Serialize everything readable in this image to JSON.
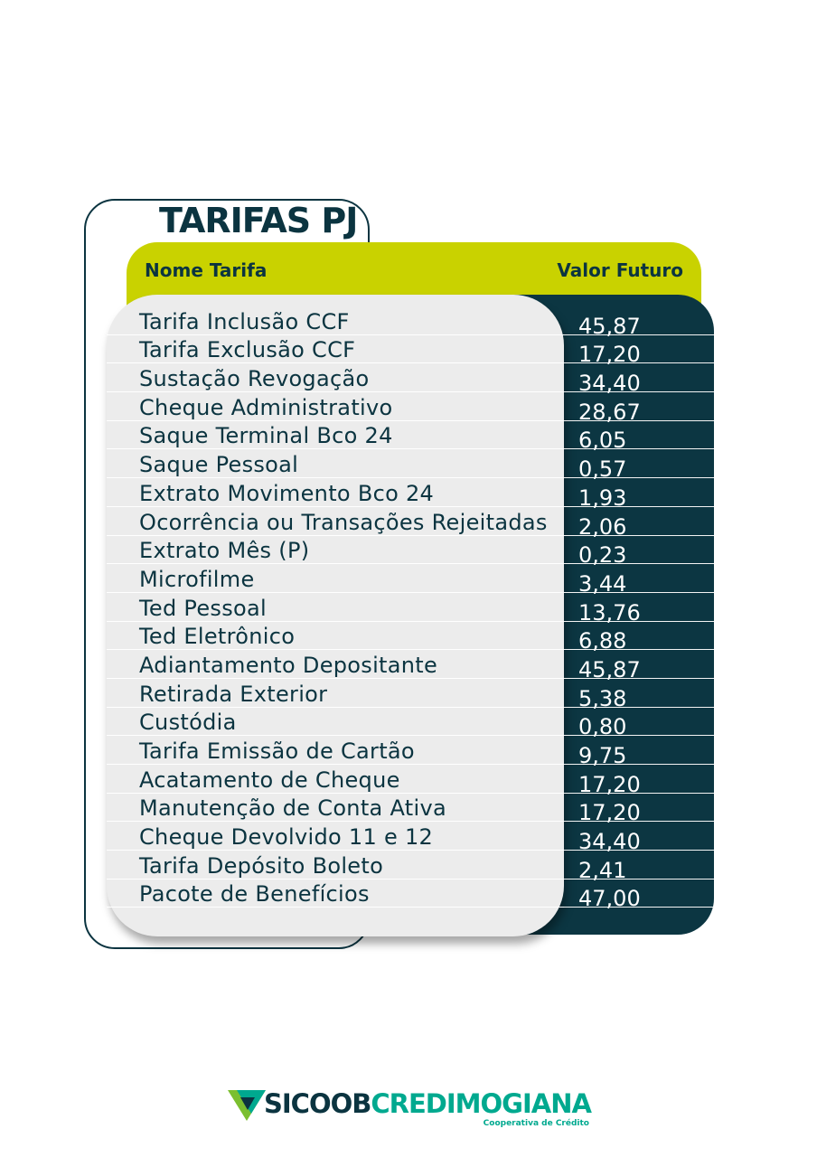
{
  "title": "TARIFAS PJ",
  "table": {
    "headers": {
      "name": "Nome Tarifa",
      "value": "Valor Futuro"
    },
    "rows": [
      {
        "name": "Tarifa Inclusão CCF",
        "value": "45,87"
      },
      {
        "name": "Tarifa Exclusão CCF",
        "value": "17,20"
      },
      {
        "name": "Sustação Revogação",
        "value": "34,40"
      },
      {
        "name": "Cheque Administrativo",
        "value": "28,67"
      },
      {
        "name": "Saque Terminal Bco 24",
        "value": "6,05"
      },
      {
        "name": "Saque Pessoal",
        "value": "0,57"
      },
      {
        "name": "Extrato Movimento Bco 24",
        "value": "1,93"
      },
      {
        "name": "Ocorrência ou Transações Rejeitadas",
        "value": "2,06"
      },
      {
        "name": "Extrato Mês (P)",
        "value": "0,23"
      },
      {
        "name": "Microfilme",
        "value": "3,44"
      },
      {
        "name": "Ted Pessoal",
        "value": "13,76"
      },
      {
        "name": "Ted Eletrônico",
        "value": "6,88"
      },
      {
        "name": "Adiantamento Depositante",
        "value": "45,87"
      },
      {
        "name": "Retirada Exterior",
        "value": "5,38"
      },
      {
        "name": "Custódia",
        "value": "0,80"
      },
      {
        "name": "Tarifa Emissão de Cartão",
        "value": "9,75"
      },
      {
        "name": "Acatamento de Cheque",
        "value": "17,20"
      },
      {
        "name": "Manutenção de Conta Ativa",
        "value": "17,20"
      },
      {
        "name": "Cheque Devolvido 11 e 12",
        "value": "34,40"
      },
      {
        "name": "Tarifa Depósito Boleto",
        "value": "2,41"
      },
      {
        "name": "Pacote de Benefícios",
        "value": "47,00"
      }
    ]
  },
  "logo": {
    "brand_part1": "SICOOB",
    "brand_part2": "CREDIMOGIANA",
    "tagline": "Cooperativa de Crédito",
    "icon": "sicoob-triangle-logo-icon"
  },
  "colors": {
    "dark_teal": "#0c3642",
    "lime": "#c9d200",
    "light_gray": "#ececec",
    "brand_green": "#00a98f"
  }
}
